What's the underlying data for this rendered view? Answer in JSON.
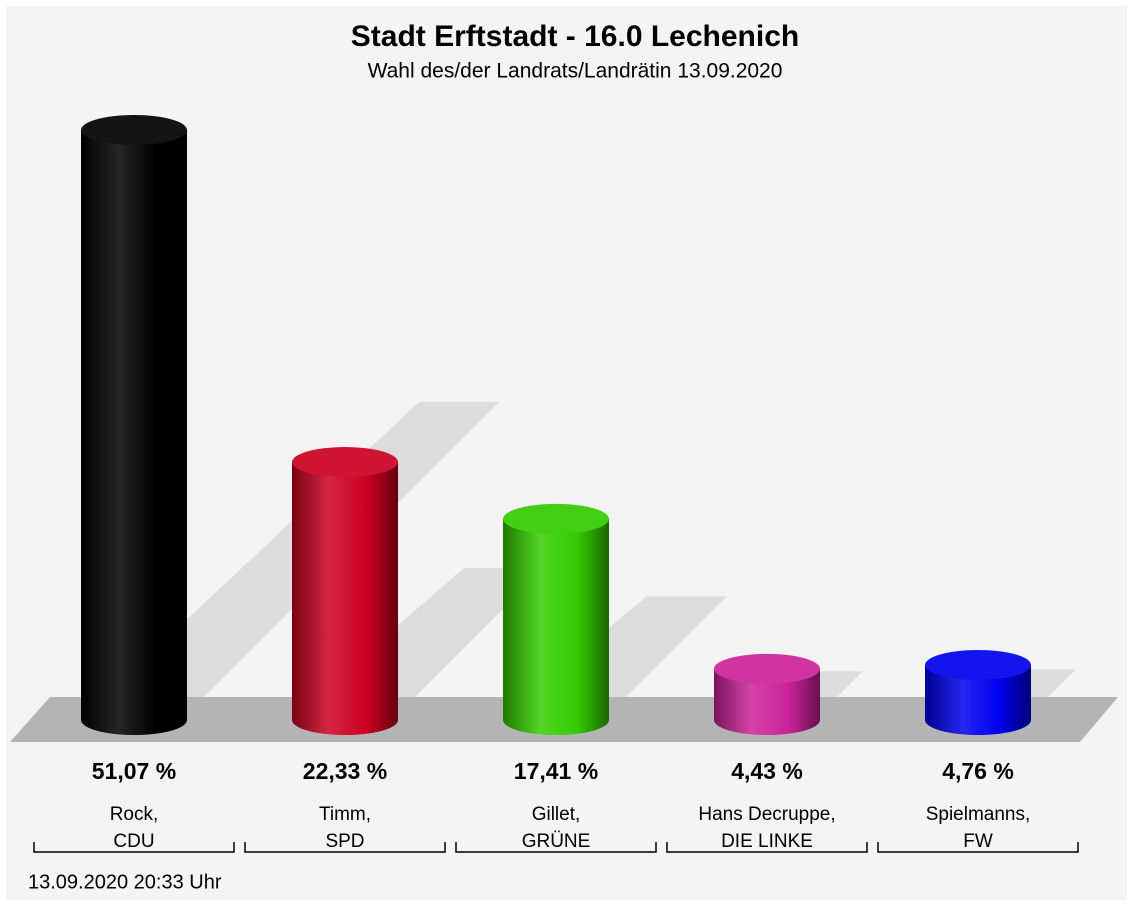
{
  "chart_data": {
    "type": "bar",
    "title": "Stadt Erftstadt - 16.0 Lechenich",
    "subtitle": "Wahl des/der Landrats/Landrätin 13.09.2020",
    "categories": [
      [
        "Rock,",
        "CDU"
      ],
      [
        "Timm,",
        "SPD"
      ],
      [
        "Gillet,",
        "GRÜNE"
      ],
      [
        "Hans Decruppe,",
        "DIE LINKE"
      ],
      [
        "Spielmanns,",
        "FW"
      ]
    ],
    "values": [
      51.07,
      22.33,
      17.41,
      4.43,
      4.76
    ],
    "value_labels": [
      "51,07 %",
      "22,33 %",
      "17,41 %",
      "4,43 %",
      "4,76 %"
    ],
    "colors": [
      "#000000",
      "#cc0022",
      "#33cc00",
      "#cc2299",
      "#0000ee"
    ],
    "footer": "13.09.2020 20:33 Uhr"
  }
}
